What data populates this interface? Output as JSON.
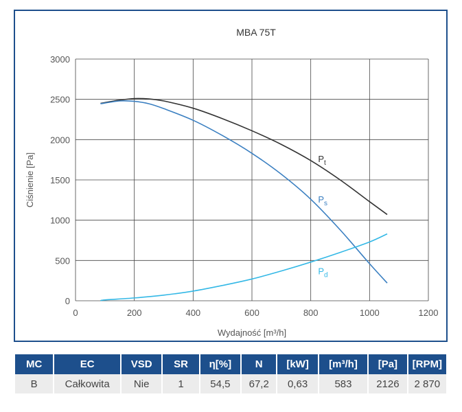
{
  "chart_data": {
    "type": "line",
    "title": "MBA 75T",
    "xlabel": "Wydajność [m³/h]",
    "ylabel": "Ciśnienie [Pa]",
    "xlim": [
      0,
      1200
    ],
    "ylim": [
      0,
      3000
    ],
    "x_ticks": [
      "0",
      "200",
      "400",
      "600",
      "800",
      "1000",
      "1200"
    ],
    "y_ticks": [
      "0",
      "500",
      "1000",
      "1500",
      "2000",
      "2500",
      "3000"
    ],
    "grid": true,
    "series": [
      {
        "name": "Pt",
        "color": "#333333",
        "x": [
          85,
          150,
          200,
          250,
          300,
          400,
          500,
          600,
          700,
          800,
          900,
          1000,
          1060
        ],
        "y": [
          2450,
          2490,
          2510,
          2505,
          2480,
          2390,
          2260,
          2110,
          1940,
          1740,
          1500,
          1230,
          1070
        ]
      },
      {
        "name": "Ps",
        "color": "#3a7fc1",
        "x": [
          85,
          150,
          200,
          250,
          300,
          400,
          500,
          600,
          700,
          800,
          900,
          1000,
          1060
        ],
        "y": [
          2445,
          2480,
          2475,
          2445,
          2385,
          2240,
          2050,
          1830,
          1570,
          1260,
          880,
          460,
          220
        ]
      },
      {
        "name": "Pd",
        "color": "#33b8e6",
        "x": [
          85,
          100,
          200,
          300,
          400,
          500,
          600,
          700,
          800,
          900,
          1000,
          1060
        ],
        "y": [
          0,
          10,
          35,
          70,
          120,
          190,
          270,
          370,
          480,
          600,
          730,
          830
        ]
      }
    ],
    "curve_labels": [
      {
        "main": "P",
        "sub": "t",
        "x": 825,
        "y": 1720,
        "color": "#333333"
      },
      {
        "main": "P",
        "sub": "s",
        "x": 825,
        "y": 1220,
        "color": "#3a7fc1"
      },
      {
        "main": "P",
        "sub": "d",
        "x": 825,
        "y": 330,
        "color": "#33b8e6"
      }
    ]
  },
  "table": {
    "headers": [
      "MC",
      "EC",
      "VSD",
      "SR",
      "η[%]",
      "N",
      "[kW]",
      "[m³/h]",
      "[Pa]",
      "[RPM]"
    ],
    "values": [
      "B",
      "Całkowita",
      "Nie",
      "1",
      "54,5",
      "67,2",
      "0,63",
      "583",
      "2126",
      "2 870"
    ]
  }
}
